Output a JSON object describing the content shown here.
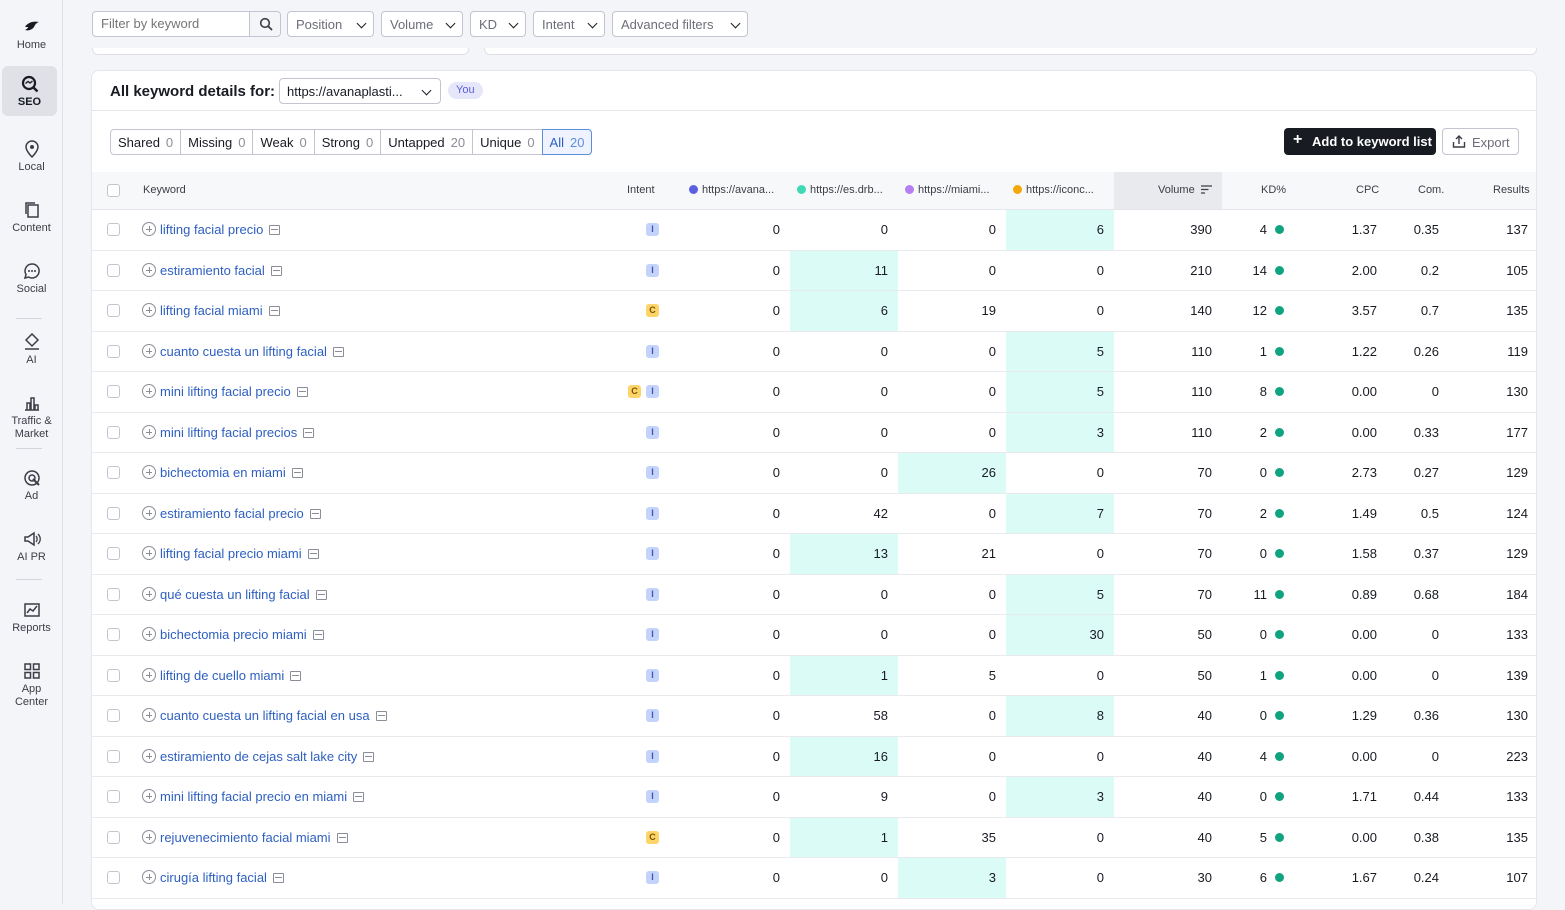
{
  "sidebar": {
    "items": [
      {
        "label": "Home",
        "icon": "home-bird-icon"
      },
      {
        "label": "SEO",
        "icon": "seo-icon",
        "active": true
      },
      {
        "label": "Local",
        "icon": "location-pin-icon"
      },
      {
        "label": "Content",
        "icon": "content-icon"
      },
      {
        "label": "Social",
        "icon": "chat-bubble-icon"
      },
      {
        "label": "AI",
        "icon": "ai-icon"
      },
      {
        "label": "Traffic &\nMarket",
        "icon": "bar-chart-icon"
      },
      {
        "label": "Ad",
        "icon": "ad-target-icon"
      },
      {
        "label": "AI PR",
        "icon": "megaphone-icon"
      },
      {
        "label": "Reports",
        "icon": "reports-icon"
      },
      {
        "label": "App\nCenter",
        "icon": "app-grid-icon"
      }
    ]
  },
  "filters": {
    "search_placeholder": "Filter by keyword",
    "position": "Position",
    "volume": "Volume",
    "kd": "KD",
    "intent": "Intent",
    "advanced": "Advanced filters"
  },
  "panel": {
    "title": "All keyword details for:",
    "domain": "https://avanaplasti...",
    "you_badge": "You"
  },
  "segments": [
    {
      "label": "Shared",
      "count": "0"
    },
    {
      "label": "Missing",
      "count": "0"
    },
    {
      "label": "Weak",
      "count": "0"
    },
    {
      "label": "Strong",
      "count": "0"
    },
    {
      "label": "Untapped",
      "count": "20"
    },
    {
      "label": "Unique",
      "count": "0"
    },
    {
      "label": "All",
      "count": "20",
      "active": true
    }
  ],
  "actions": {
    "add_label": "Add to keyword list",
    "export_label": "Export"
  },
  "columns": {
    "keyword": "Keyword",
    "intent": "Intent",
    "d1": "https://avana...",
    "d2": "https://es.drb...",
    "d3": "https://miami...",
    "d4": "https://iconc...",
    "volume": "Volume",
    "kd": "KD%",
    "cpc": "CPC",
    "com": "Com.",
    "results": "Results"
  },
  "colors": {
    "d1": "#5c5fe0",
    "d2": "#3fd9b6",
    "d3": "#b67ef0",
    "d4": "#f5a60b",
    "highlight": "#dbfbf6",
    "kd_easy": "#10a37f",
    "link": "#2d5fc0"
  },
  "rows": [
    {
      "keyword": "lifting facial precio",
      "intent": [
        "I"
      ],
      "d1": "0",
      "d2": "0",
      "d3": "0",
      "d4": "6",
      "best": 4,
      "volume": "390",
      "kd": "4",
      "cpc": "1.37",
      "com": "0.35",
      "results": "137"
    },
    {
      "keyword": "estiramiento facial",
      "intent": [
        "I"
      ],
      "d1": "0",
      "d2": "11",
      "d3": "0",
      "d4": "0",
      "best": 2,
      "volume": "210",
      "kd": "14",
      "cpc": "2.00",
      "com": "0.2",
      "results": "105"
    },
    {
      "keyword": "lifting facial miami",
      "intent": [
        "C"
      ],
      "d1": "0",
      "d2": "6",
      "d3": "19",
      "d4": "0",
      "best": 2,
      "volume": "140",
      "kd": "12",
      "cpc": "3.57",
      "com": "0.7",
      "results": "135"
    },
    {
      "keyword": "cuanto cuesta un lifting facial",
      "intent": [
        "I"
      ],
      "d1": "0",
      "d2": "0",
      "d3": "0",
      "d4": "5",
      "best": 4,
      "volume": "110",
      "kd": "1",
      "cpc": "1.22",
      "com": "0.26",
      "results": "119"
    },
    {
      "keyword": "mini lifting facial precio",
      "intent": [
        "C",
        "I"
      ],
      "d1": "0",
      "d2": "0",
      "d3": "0",
      "d4": "5",
      "best": 4,
      "volume": "110",
      "kd": "8",
      "cpc": "0.00",
      "com": "0",
      "results": "130"
    },
    {
      "keyword": "mini lifting facial precios",
      "intent": [
        "I"
      ],
      "d1": "0",
      "d2": "0",
      "d3": "0",
      "d4": "3",
      "best": 4,
      "volume": "110",
      "kd": "2",
      "cpc": "0.00",
      "com": "0.33",
      "results": "177"
    },
    {
      "keyword": "bichectomia en miami",
      "intent": [
        "I"
      ],
      "d1": "0",
      "d2": "0",
      "d3": "26",
      "d4": "0",
      "best": 3,
      "volume": "70",
      "kd": "0",
      "cpc": "2.73",
      "com": "0.27",
      "results": "129"
    },
    {
      "keyword": "estiramiento facial precio",
      "intent": [
        "I"
      ],
      "d1": "0",
      "d2": "42",
      "d3": "0",
      "d4": "7",
      "best": 4,
      "volume": "70",
      "kd": "2",
      "cpc": "1.49",
      "com": "0.5",
      "results": "124"
    },
    {
      "keyword": "lifting facial precio miami",
      "intent": [
        "I"
      ],
      "d1": "0",
      "d2": "13",
      "d3": "21",
      "d4": "0",
      "best": 2,
      "volume": "70",
      "kd": "0",
      "cpc": "1.58",
      "com": "0.37",
      "results": "129"
    },
    {
      "keyword": "qué cuesta un lifting facial",
      "intent": [
        "I"
      ],
      "d1": "0",
      "d2": "0",
      "d3": "0",
      "d4": "5",
      "best": 4,
      "volume": "70",
      "kd": "11",
      "cpc": "0.89",
      "com": "0.68",
      "results": "184"
    },
    {
      "keyword": "bichectomia precio miami",
      "intent": [
        "I"
      ],
      "d1": "0",
      "d2": "0",
      "d3": "0",
      "d4": "30",
      "best": 4,
      "volume": "50",
      "kd": "0",
      "cpc": "0.00",
      "com": "0",
      "results": "133"
    },
    {
      "keyword": "lifting de cuello miami",
      "intent": [
        "I"
      ],
      "d1": "0",
      "d2": "1",
      "d3": "5",
      "d4": "0",
      "best": 2,
      "volume": "50",
      "kd": "1",
      "cpc": "0.00",
      "com": "0",
      "results": "139"
    },
    {
      "keyword": "cuanto cuesta un lifting facial en usa",
      "intent": [
        "I"
      ],
      "d1": "0",
      "d2": "58",
      "d3": "0",
      "d4": "8",
      "best": 4,
      "volume": "40",
      "kd": "0",
      "cpc": "1.29",
      "com": "0.36",
      "results": "130"
    },
    {
      "keyword": "estiramiento de cejas salt lake city",
      "intent": [
        "I"
      ],
      "d1": "0",
      "d2": "16",
      "d3": "0",
      "d4": "0",
      "best": 2,
      "volume": "40",
      "kd": "4",
      "cpc": "0.00",
      "com": "0",
      "results": "223"
    },
    {
      "keyword": "mini lifting facial precio en miami",
      "intent": [
        "I"
      ],
      "d1": "0",
      "d2": "9",
      "d3": "0",
      "d4": "3",
      "best": 4,
      "volume": "40",
      "kd": "0",
      "cpc": "1.71",
      "com": "0.44",
      "results": "133"
    },
    {
      "keyword": "rejuvenecimiento facial miami",
      "intent": [
        "C"
      ],
      "d1": "0",
      "d2": "1",
      "d3": "35",
      "d4": "0",
      "best": 2,
      "volume": "40",
      "kd": "5",
      "cpc": "0.00",
      "com": "0.38",
      "results": "135"
    },
    {
      "keyword": "cirugía lifting facial",
      "intent": [
        "I"
      ],
      "d1": "0",
      "d2": "0",
      "d3": "3",
      "d4": "0",
      "best": 3,
      "volume": "30",
      "kd": "6",
      "cpc": "1.67",
      "com": "0.24",
      "results": "107"
    }
  ]
}
